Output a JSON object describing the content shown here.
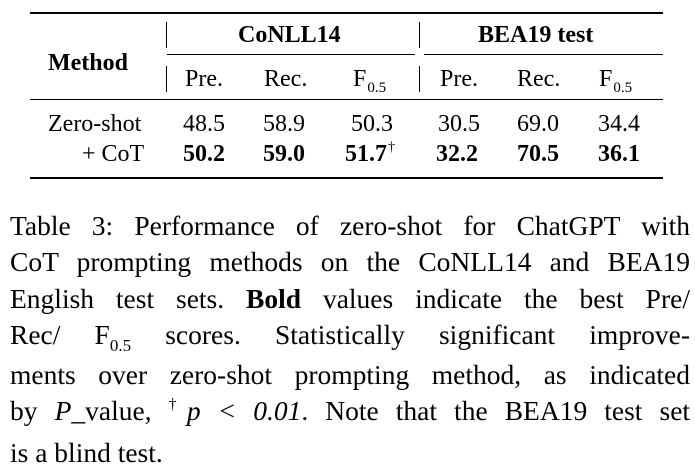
{
  "table": {
    "header": {
      "method": "Method",
      "group1": "CoNLL14",
      "group2": "BEA19 test",
      "pre": "Pre.",
      "rec": "Rec.",
      "f_base": "F",
      "f_sub": "0.5"
    },
    "rows": [
      {
        "method": "Zero-shot",
        "c_pre": "48.5",
        "c_rec": "58.9",
        "c_f": "50.3",
        "b_pre": "30.5",
        "b_rec": "69.0",
        "b_f": "34.4"
      },
      {
        "method": "+ CoT",
        "c_pre": "50.2",
        "c_rec": "59.0",
        "c_f": "51.7",
        "c_f_mark": "†",
        "b_pre": "32.2",
        "b_rec": "70.5",
        "b_f": "36.1"
      }
    ]
  },
  "caption": {
    "l1": "Table 3:  Performance of zero-shot for ChatGPT with",
    "l2": "CoT prompting methods on the CoNLL14 and BEA19",
    "l3a": "English test sets.",
    "l3b": "Bold",
    "l3c": "values indicate the best Pre/",
    "l4a": "Rec/ F",
    "l4sub": "0.5",
    "l4b": "scores.",
    "l4c": "Statistically significant improve-",
    "l5": "ments over zero-shot prompting method, as indicated",
    "l6a": "by",
    "l6p": "P",
    "l6b": "_value,",
    "l6sup": "†",
    "l6c": "p < 0.01",
    "l6d": ". Note that the BEA19 test set",
    "l7": "is a blind test."
  }
}
